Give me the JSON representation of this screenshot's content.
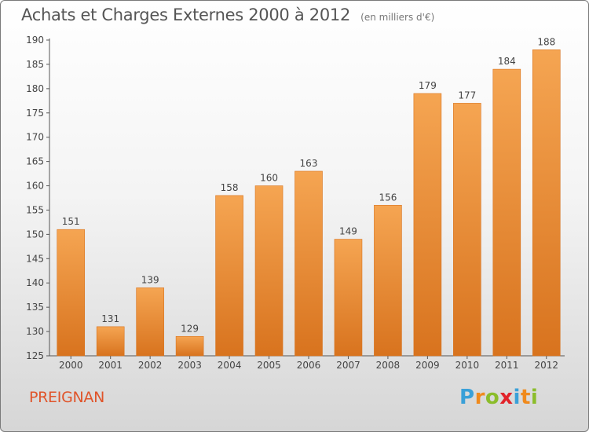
{
  "header": {
    "title": "Achats et Charges Externes 2000 à 2012",
    "unit": "(en milliers d'€)"
  },
  "footer": {
    "commune": "PREIGNAN",
    "brand": "Proxiti",
    "brand_letters": [
      {
        "ch": "P",
        "color": "#3aa0d8"
      },
      {
        "ch": "r",
        "color": "#f08a1c"
      },
      {
        "ch": "o",
        "color": "#8bbd2b"
      },
      {
        "ch": "x",
        "color": "#e2232a"
      },
      {
        "ch": "i",
        "color": "#3aa0d8"
      },
      {
        "ch": "t",
        "color": "#f08a1c"
      },
      {
        "ch": "i",
        "color": "#8bbd2b"
      }
    ]
  },
  "colors": {
    "bar_light": "#f5a552",
    "bar_dark": "#d8731e",
    "accent": "#e0542a"
  },
  "chart_data": {
    "type": "bar",
    "title": "Achats et Charges Externes 2000 à 2012",
    "subtitle": "(en milliers d'€)",
    "categories": [
      "2000",
      "2001",
      "2002",
      "2003",
      "2004",
      "2005",
      "2006",
      "2007",
      "2008",
      "2009",
      "2010",
      "2011",
      "2012"
    ],
    "values": [
      151,
      131,
      139,
      129,
      158,
      160,
      163,
      149,
      156,
      179,
      177,
      184,
      188
    ],
    "ylim": [
      125,
      190
    ],
    "yticks": [
      125,
      130,
      135,
      140,
      145,
      150,
      155,
      160,
      165,
      170,
      175,
      180,
      185,
      190
    ],
    "xlabel": "",
    "ylabel": "",
    "grid": false,
    "legend": "none",
    "data_labels": true
  }
}
